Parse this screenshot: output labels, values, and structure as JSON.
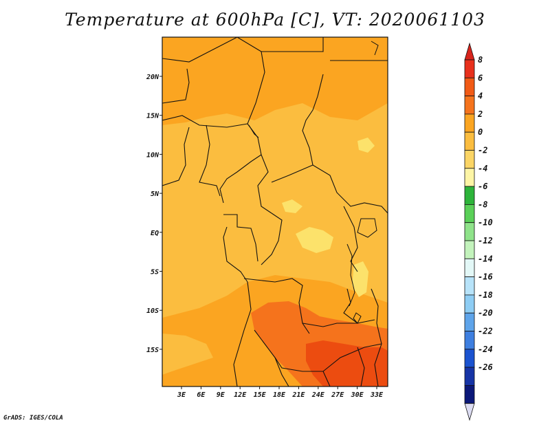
{
  "title": "Temperature at 600hPa [C], VT: 2020061103",
  "credit": "GrADS: IGES/COLA",
  "map": {
    "lat_labels": [
      "20N",
      "15N",
      "10N",
      "5N",
      "EQ",
      "5S",
      "10S",
      "15S"
    ],
    "lon_labels": [
      "3E",
      "6E",
      "9E",
      "12E",
      "15E",
      "18E",
      "21E",
      "24E",
      "27E",
      "30E",
      "33E"
    ],
    "colors": {
      "land_base": "#fbbd3f",
      "warm": "#fba521",
      "hot": "#f5731c",
      "hottest": "#ec4c10",
      "cool": "#fce26b"
    }
  },
  "colorbar": {
    "labels": [
      "8",
      "6",
      "4",
      "2",
      "0",
      "-2",
      "-4",
      "-6",
      "-8",
      "-10",
      "-12",
      "-14",
      "-16",
      "-18",
      "-20",
      "-22",
      "-24",
      "-26"
    ],
    "colors": [
      "#e8301c",
      "#f15a15",
      "#f5731c",
      "#fba521",
      "#fbbd3f",
      "#fbd565",
      "#fdf5a5",
      "#2db43a",
      "#5ad058",
      "#8fe38a",
      "#c3f3bc",
      "#e3f8f7",
      "#b7e3f9",
      "#8ecdf4",
      "#5ea4ea",
      "#3e7fe0",
      "#1b53d0",
      "#1634a6",
      "#0b1879"
    ],
    "top_color": "#d8241c",
    "bottom_color": "#dcdcf2"
  }
}
